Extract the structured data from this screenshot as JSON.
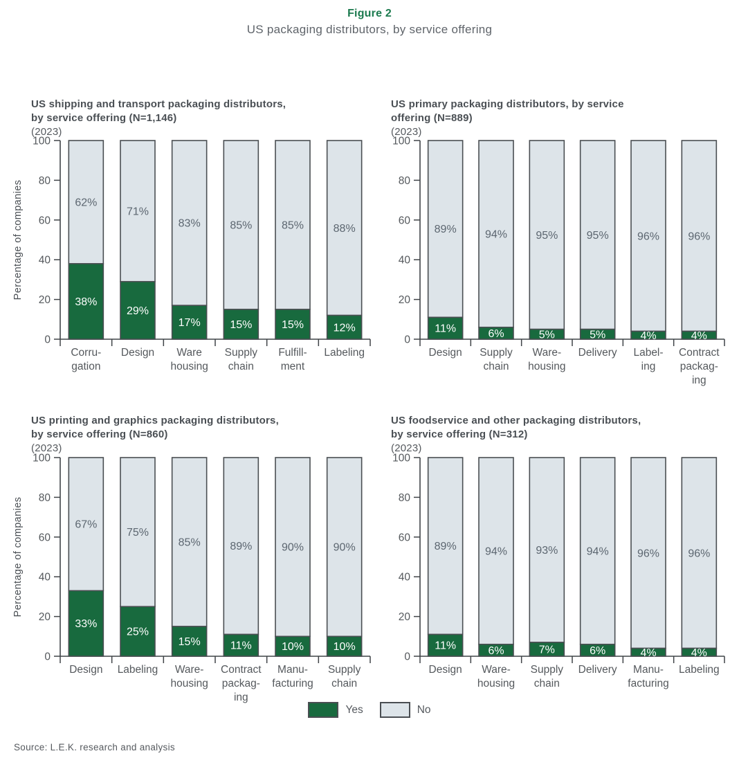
{
  "figure": {
    "label": "Figure 2",
    "title": "US packaging distributors, by service offering"
  },
  "legend": {
    "yes_label": "Yes",
    "no_label": "No",
    "position": "bottom"
  },
  "source": "Source: L.E.K. research and analysis",
  "colors": {
    "yes": "#186a3e",
    "no": "#dde4e9",
    "outline": "#4a4e52",
    "axis": "#3f4347",
    "figure_label_green": "#1b7a4e"
  },
  "y_axis": {
    "label": "Percentage of companies",
    "ticks": [
      0,
      20,
      40,
      60,
      80,
      100
    ],
    "range": [
      0,
      100
    ],
    "grid": false
  },
  "chart_data": [
    {
      "type": "bar",
      "stacked": true,
      "title": "US shipping and transport packaging distributors,\nby service offering (N=1,146)",
      "year": "(2023)",
      "ylabel": "Percentage of companies",
      "ylim": [
        0,
        100
      ],
      "categories": [
        "Corru-\ngation",
        "Design",
        "Ware\nhousing",
        "Supply\nchain",
        "Fulfill-\nment",
        "Labeling"
      ],
      "series": [
        {
          "name": "Yes",
          "values": [
            38,
            29,
            17,
            15,
            15,
            12
          ]
        },
        {
          "name": "No",
          "values": [
            62,
            71,
            83,
            85,
            85,
            88
          ]
        }
      ]
    },
    {
      "type": "bar",
      "stacked": true,
      "title": "US primary packaging distributors, by service\noffering (N=889)",
      "year": "(2023)",
      "ylabel": "",
      "ylim": [
        0,
        100
      ],
      "categories": [
        "Design",
        "Supply\nchain",
        "Ware-\nhousing",
        "Delivery",
        "Label-\ning",
        "Contract\npackag-\ning"
      ],
      "series": [
        {
          "name": "Yes",
          "values": [
            11,
            6,
            5,
            5,
            4,
            4
          ]
        },
        {
          "name": "No",
          "values": [
            89,
            94,
            95,
            95,
            96,
            96
          ]
        }
      ]
    },
    {
      "type": "bar",
      "stacked": true,
      "title": "US printing and graphics packaging distributors,\nby service offering (N=860)",
      "year": "(2023)",
      "ylabel": "Percentage of companies",
      "ylim": [
        0,
        100
      ],
      "categories": [
        "Design",
        "Labeling",
        "Ware-\nhousing",
        "Contract\npackag-\ning",
        "Manu-\nfacturing",
        "Supply\nchain"
      ],
      "series": [
        {
          "name": "Yes",
          "values": [
            33,
            25,
            15,
            11,
            10,
            10
          ]
        },
        {
          "name": "No",
          "values": [
            67,
            75,
            85,
            89,
            90,
            90
          ]
        }
      ]
    },
    {
      "type": "bar",
      "stacked": true,
      "title": "US foodservice and other packaging distributors,\nby service offering (N=312)",
      "year": "(2023)",
      "ylabel": "",
      "ylim": [
        0,
        100
      ],
      "categories": [
        "Design",
        "Ware-\nhousing",
        "Supply\nchain",
        "Delivery",
        "Manu-\nfacturing",
        "Labeling"
      ],
      "series": [
        {
          "name": "Yes",
          "values": [
            11,
            6,
            7,
            6,
            4,
            4
          ]
        },
        {
          "name": "No",
          "values": [
            89,
            94,
            93,
            94,
            96,
            96
          ]
        }
      ]
    }
  ]
}
